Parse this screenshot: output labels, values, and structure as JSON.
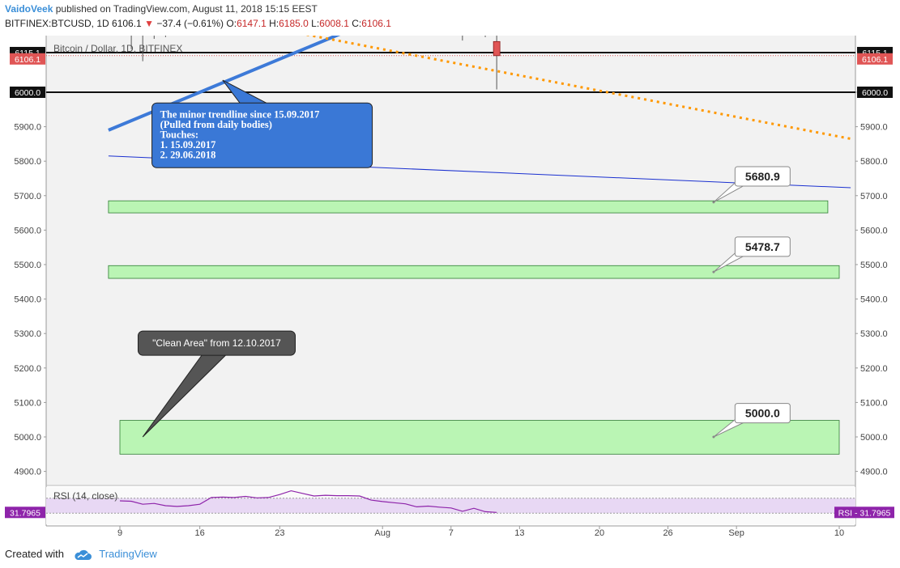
{
  "header": {
    "author": "VaidoVeek",
    "published": "published on TradingView.com, August 11, 2018 15:15 EEST",
    "symbol": "BITFINEX:BTCUSD, 1D",
    "last": "6106.1",
    "change": "−37.4 (−0.61%)",
    "o_label": "O:",
    "o": "6147.1",
    "h_label": "H:",
    "h": "6185.0",
    "l_label": "L:",
    "l": "6008.1",
    "c_label": "C:",
    "c": "6106.1"
  },
  "footer": {
    "created_with": "Created with",
    "brand": "TradingView"
  },
  "colors": {
    "pane_bg": "#f2f2f2",
    "zone_fill": "#baf5b4",
    "zone_stroke": "#2e7d32",
    "trend_thick": "#3d7ad8",
    "trend_thin": "#1a30d0",
    "orange": "#ff9800",
    "rsi_band": "#e8d8f4",
    "rsi_line": "#8e24aa",
    "red": "#e05555",
    "note_blue": "#3a78d6",
    "note_dark": "#555555"
  },
  "chart_data": {
    "type": "candlestick",
    "title": "Bitcoin / Dollar, 1D, BITFINEX",
    "ylim": [
      4860,
      6180
    ],
    "yticks": [
      "4900.0",
      "5000.0",
      "5100.0",
      "5200.0",
      "5300.0",
      "5400.0",
      "5500.0",
      "5600.0",
      "5700.0",
      "5800.0",
      "5900.0",
      "6000.0"
    ],
    "x_dates": [
      "2018-07-09",
      "2018-09-10"
    ],
    "xticks": [
      {
        "label": "9",
        "date": "2018-07-09"
      },
      {
        "label": "16",
        "date": "2018-07-16"
      },
      {
        "label": "23",
        "date": "2018-07-23"
      },
      {
        "label": "Aug",
        "date": "2018-08-01"
      },
      {
        "label": "7",
        "date": "2018-08-07"
      },
      {
        "label": "13",
        "date": "2018-08-13"
      },
      {
        "label": "20",
        "date": "2018-08-20"
      },
      {
        "label": "26",
        "date": "2018-08-26"
      },
      {
        "label": "Sep",
        "date": "2018-09-01"
      },
      {
        "label": "10",
        "date": "2018-09-10"
      }
    ],
    "price_tags": [
      {
        "label": "6115.1",
        "price": 6115.1,
        "style": "dark"
      },
      {
        "label": "6106.1",
        "price": 6106.1,
        "style": "red"
      },
      {
        "label": "6000.0",
        "price": 6000.0,
        "style": "dark"
      }
    ],
    "hlines": [
      {
        "price": 6115.1,
        "style": "solid"
      },
      {
        "price": 6106.1,
        "style": "red-dotted"
      },
      {
        "price": 6000.0,
        "style": "solid"
      }
    ],
    "candles": [
      {
        "date": "2018-08-08",
        "open": 6400,
        "high": 6420,
        "low": 6150,
        "close": 6180
      },
      {
        "date": "2018-08-10",
        "open": 6210,
        "high": 6250,
        "low": 6160,
        "close": 6175
      },
      {
        "date": "2018-08-11",
        "open": 6147.1,
        "high": 6185.0,
        "low": 6008.1,
        "close": 6106.1
      }
    ],
    "wicks": [
      {
        "date": "2018-07-10",
        "high": 6200,
        "low": 6125
      },
      {
        "date": "2018-07-11",
        "high": 6200,
        "low": 6090
      },
      {
        "date": "2018-07-12",
        "high": 6200,
        "low": 6155
      },
      {
        "date": "2018-07-13",
        "high": 6200,
        "low": 6160
      }
    ],
    "trendlines": [
      {
        "name": "minor",
        "from": {
          "date": "2018-07-08",
          "price": 5890
        },
        "to": {
          "date": "2018-08-01",
          "price": 6220
        },
        "style": "thick"
      },
      {
        "name": "thin",
        "from": {
          "date": "2018-07-08",
          "price": 5815
        },
        "to": {
          "date": "2018-09-11",
          "price": 5723
        },
        "style": "thin"
      },
      {
        "name": "orange",
        "from": {
          "date": "2018-07-17",
          "price": 6220
        },
        "to": {
          "date": "2018-09-11",
          "price": 5865
        },
        "style": "dotted"
      }
    ],
    "zones": [
      {
        "from": "2018-07-08",
        "to": "2018-09-09",
        "top": 5685,
        "bottom": 5650
      },
      {
        "from": "2018-07-08",
        "to": "2018-09-10",
        "top": 5497,
        "bottom": 5460
      },
      {
        "from": "2018-07-09",
        "to": "2018-09-10",
        "top": 5048,
        "bottom": 4950
      }
    ],
    "labels": [
      {
        "text": "5680.9",
        "date": "2018-09-03",
        "price": 5756,
        "anchor_date": "2018-08-30",
        "anchor_price": 5680.9
      },
      {
        "text": "5478.7",
        "date": "2018-09-03",
        "price": 5552,
        "anchor_date": "2018-08-30",
        "anchor_price": 5478.7
      },
      {
        "text": "5000.0",
        "date": "2018-09-03",
        "price": 5069,
        "anchor_date": "2018-08-30",
        "anchor_price": 5000.0
      }
    ],
    "notes": [
      {
        "name": "minor-trendline-note",
        "style": "blue",
        "lines": [
          "The minor trendline since 15.09.2017",
          "(Pulled from daily bodies)",
          "Touches:",
          "1. 15.09.2017",
          "2. 29.06.2018"
        ],
        "date": "2018-07-15",
        "price": 5875,
        "anchor_date": "2018-07-18",
        "anchor_price": 6035
      },
      {
        "name": "clean-area-note",
        "style": "dark",
        "lines": [
          "\"Clean Area\" from 12.10.2017"
        ],
        "date": "2018-07-14",
        "price": 5272,
        "anchor_date": "2018-07-11",
        "anchor_price": 5000
      }
    ],
    "rsi": {
      "label": "RSI (14, close)",
      "value": "31.7965",
      "tag_right": "RSI - 31.7965",
      "ylim": [
        0,
        100
      ],
      "band": [
        30,
        70
      ],
      "points": [
        {
          "date": "2018-07-09",
          "value": 63
        },
        {
          "date": "2018-07-10",
          "value": 62
        },
        {
          "date": "2018-07-11",
          "value": 54
        },
        {
          "date": "2018-07-12",
          "value": 56
        },
        {
          "date": "2018-07-13",
          "value": 50
        },
        {
          "date": "2018-07-14",
          "value": 48
        },
        {
          "date": "2018-07-15",
          "value": 50
        },
        {
          "date": "2018-07-16",
          "value": 54
        },
        {
          "date": "2018-07-17",
          "value": 72
        },
        {
          "date": "2018-07-18",
          "value": 73
        },
        {
          "date": "2018-07-19",
          "value": 72
        },
        {
          "date": "2018-07-20",
          "value": 75
        },
        {
          "date": "2018-07-21",
          "value": 71
        },
        {
          "date": "2018-07-22",
          "value": 72
        },
        {
          "date": "2018-07-23",
          "value": 80
        },
        {
          "date": "2018-07-24",
          "value": 90
        },
        {
          "date": "2018-07-25",
          "value": 83
        },
        {
          "date": "2018-07-26",
          "value": 76
        },
        {
          "date": "2018-07-27",
          "value": 78
        },
        {
          "date": "2018-07-28",
          "value": 77
        },
        {
          "date": "2018-07-29",
          "value": 77
        },
        {
          "date": "2018-07-30",
          "value": 76
        },
        {
          "date": "2018-07-31",
          "value": 65
        },
        {
          "date": "2018-08-01",
          "value": 61
        },
        {
          "date": "2018-08-02",
          "value": 58
        },
        {
          "date": "2018-08-03",
          "value": 55
        },
        {
          "date": "2018-08-04",
          "value": 47
        },
        {
          "date": "2018-08-05",
          "value": 49
        },
        {
          "date": "2018-08-06",
          "value": 46
        },
        {
          "date": "2018-08-07",
          "value": 44
        },
        {
          "date": "2018-08-08",
          "value": 35
        },
        {
          "date": "2018-08-09",
          "value": 43
        },
        {
          "date": "2018-08-10",
          "value": 34
        },
        {
          "date": "2018-08-11",
          "value": 32
        }
      ]
    }
  }
}
